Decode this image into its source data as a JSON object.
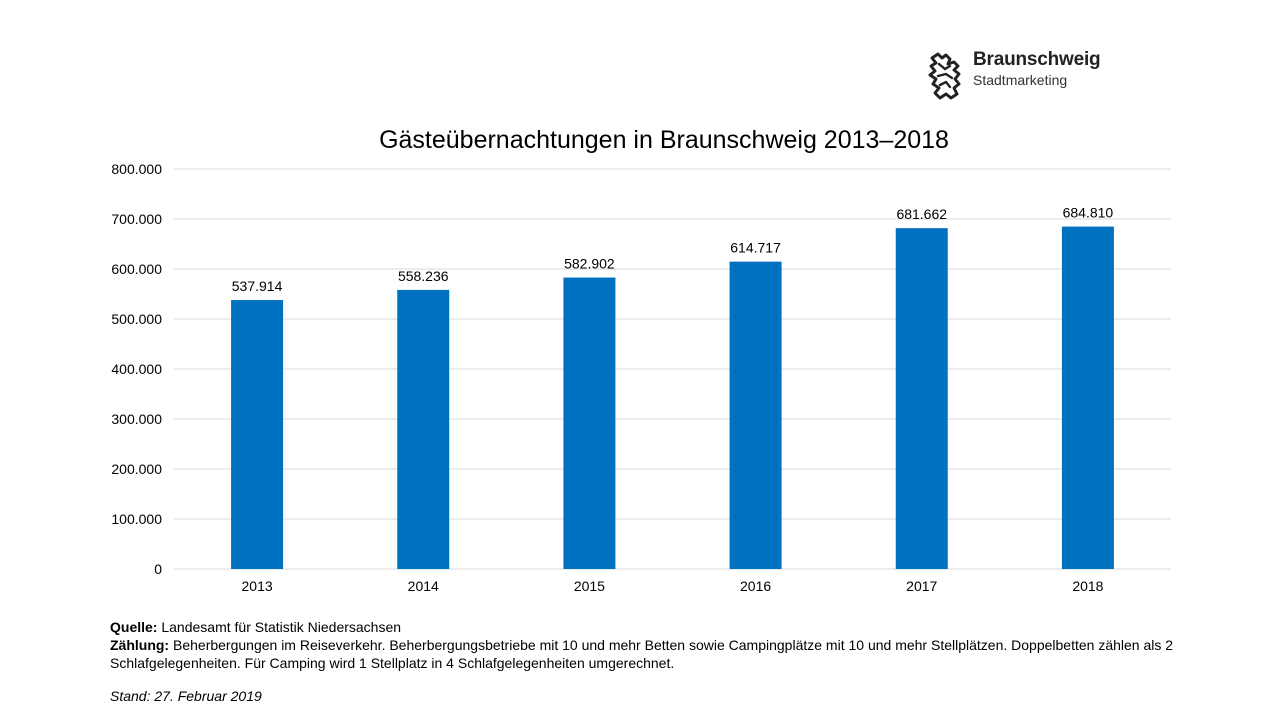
{
  "logo": {
    "name": "Braunschweig",
    "subtitle": "Stadtmarketing"
  },
  "chart_data": {
    "type": "bar",
    "title": "Gästeübernachtungen in Braunschweig 2013–2018",
    "categories": [
      "2013",
      "2014",
      "2015",
      "2016",
      "2017",
      "2018"
    ],
    "values": [
      537914,
      558236,
      582902,
      614717,
      681662,
      684810
    ],
    "data_labels": [
      "537.914",
      "558.236",
      "582.902",
      "614.717",
      "681.662",
      "684.810"
    ],
    "ylim": [
      0,
      800000
    ],
    "yticks": [
      0,
      100000,
      200000,
      300000,
      400000,
      500000,
      600000,
      700000,
      800000
    ],
    "ytick_labels": [
      "0",
      "100.000",
      "200.000",
      "300.000",
      "400.000",
      "500.000",
      "600.000",
      "700.000",
      "800.000"
    ],
    "xlabel": "",
    "ylabel": "",
    "grid": true,
    "legend": "none",
    "bar_color": "#0070C0",
    "grid_color": "#D9D9D9"
  },
  "footer": {
    "source_label": "Quelle:",
    "source_text": "Landesamt für Statistik Niedersachsen",
    "count_label": "Zählung:",
    "count_text": "Beherbergungen im Reiseverkehr. Beherbergungsbetriebe mit 10 und mehr Betten sowie Campingplätze mit 10 und mehr Stellplätzen. Doppelbetten zählen als 2 Schlafgelegenheiten. Für Camping wird 1 Stellplatz in 4 Schlafgelegenheiten umgerechnet.",
    "stand": "Stand: 27. Februar 2019"
  }
}
